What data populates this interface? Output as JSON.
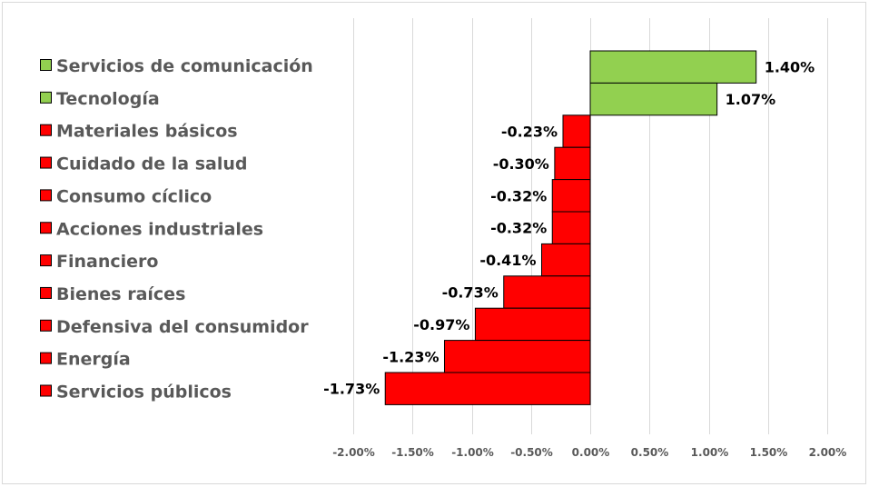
{
  "chart_data": {
    "type": "bar",
    "orientation": "horizontal",
    "categories": [
      "Servicios de comunicación",
      "Tecnología",
      "Materiales básicos",
      "Cuidado de la salud",
      "Consumo cíclico",
      "Acciones industriales",
      "Financiero",
      "Bienes raíces",
      "Defensiva del consumidor",
      "Energía",
      "Servicios públicos"
    ],
    "values": [
      1.4,
      1.07,
      -0.23,
      -0.3,
      -0.32,
      -0.32,
      -0.41,
      -0.73,
      -0.97,
      -1.23,
      -1.73
    ],
    "data_labels": [
      "1.40%",
      "1.07%",
      "-0.23%",
      "-0.30%",
      "-0.32%",
      "-0.32%",
      "-0.41%",
      "-0.73%",
      "-0.97%",
      "-1.23%",
      "-1.73%"
    ],
    "xlim": [
      -2.0,
      2.0
    ],
    "xticks": [
      -2.0,
      -1.5,
      -1.0,
      -0.5,
      0,
      0.5,
      1.0,
      1.5,
      2.0
    ],
    "xtick_labels": [
      "-2.00%",
      "-1.50%",
      "-1.00%",
      "-0.50%",
      "0.00%",
      "0.50%",
      "1.00%",
      "1.50%",
      "2.00%"
    ],
    "grid": true,
    "legend_position": "left",
    "colors": {
      "positive": "#92d050",
      "negative": "#ff0000",
      "grid": "#d9d9d9",
      "text": "#595959"
    }
  }
}
